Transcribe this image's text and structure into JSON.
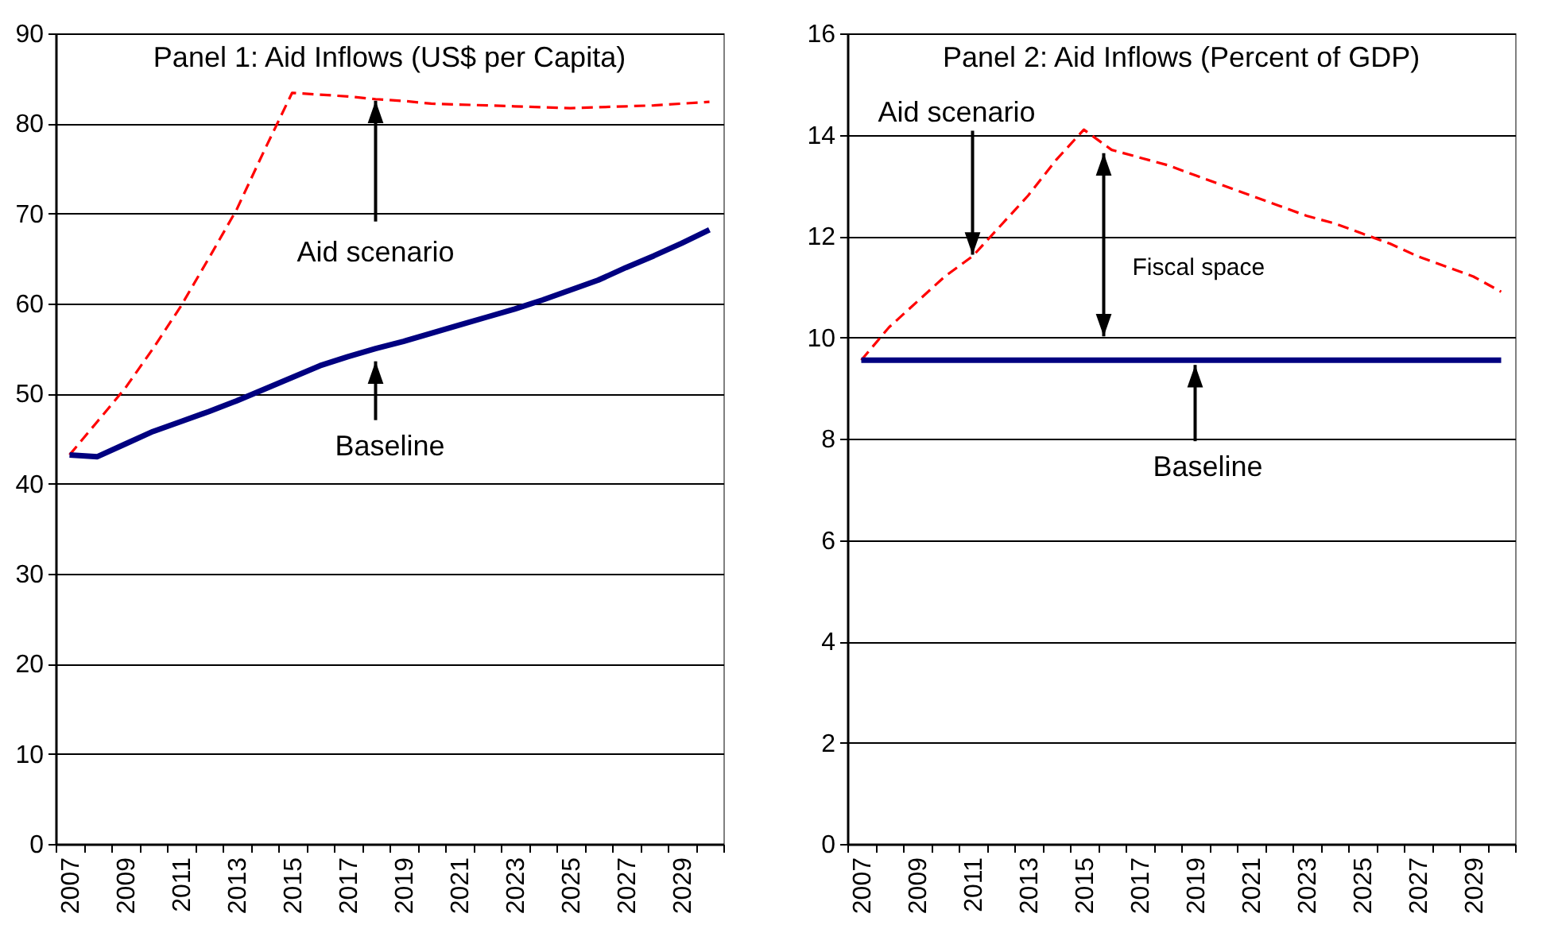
{
  "chart_data": [
    {
      "type": "line",
      "title": "Panel 1: Aid Inflows (US$ per Capita)",
      "categories": [
        "2007",
        null,
        "2009",
        null,
        "2011",
        null,
        "2013",
        null,
        "2015",
        null,
        "2017",
        null,
        "2019",
        null,
        "2021",
        null,
        "2023",
        null,
        "2025",
        null,
        "2027",
        null,
        "2029",
        null
      ],
      "series": [
        {
          "color": "#ff0000",
          "line_style": "dashed",
          "values": [
            43.2,
            46.9,
            50.6,
            55.0,
            59.7,
            65.0,
            70.4,
            77.0,
            83.4,
            83.2,
            83.0,
            82.7,
            82.5,
            82.2,
            82.1,
            82.0,
            81.9,
            81.8,
            81.7,
            81.8,
            81.9,
            82.0,
            82.2,
            82.4
          ]
        },
        {
          "color": "#000080",
          "line_style": "solid",
          "values": [
            43.2,
            43.0,
            44.4,
            45.8,
            46.9,
            48.0,
            49.2,
            50.5,
            51.8,
            53.1,
            54.1,
            55.0,
            55.8,
            56.7,
            57.6,
            58.5,
            59.4,
            60.4,
            61.5,
            62.6,
            64.0,
            65.3,
            66.7,
            68.2
          ]
        }
      ],
      "ylim": [
        0,
        90
      ],
      "yticks": [
        0,
        10,
        20,
        30,
        40,
        50,
        60,
        70,
        80,
        90
      ],
      "grid": "y",
      "annotations": [
        {
          "text": "Aid scenario",
          "y": 82.7
        },
        {
          "text": "Baseline",
          "y": 55.0
        }
      ]
    },
    {
      "type": "line",
      "title": "Panel 2: Aid Inflows (Percent of GDP)",
      "categories": [
        "2007",
        null,
        "2009",
        null,
        "2011",
        null,
        "2013",
        null,
        "2015",
        null,
        "2017",
        null,
        "2019",
        null,
        "2021",
        null,
        "2023",
        null,
        "2025",
        null,
        "2027",
        null,
        "2029",
        null
      ],
      "series": [
        {
          "color": "#ff0000",
          "line_style": "dashed",
          "values": [
            9.55,
            10.2,
            10.7,
            11.2,
            11.6,
            12.2,
            12.8,
            13.5,
            14.1,
            13.7,
            13.55,
            13.4,
            13.2,
            13.0,
            12.8,
            12.6,
            12.4,
            12.25,
            12.05,
            11.85,
            11.6,
            11.4,
            11.2,
            10.9
          ]
        },
        {
          "color": "#000080",
          "line_style": "solid",
          "values": [
            9.55,
            9.55,
            9.55,
            9.55,
            9.55,
            9.55,
            9.55,
            9.55,
            9.55,
            9.55,
            9.55,
            9.55,
            9.55,
            9.55,
            9.55,
            9.55,
            9.55,
            9.55,
            9.55,
            9.55,
            9.55,
            9.55,
            9.55,
            9.55
          ]
        }
      ],
      "ylim": [
        0,
        16
      ],
      "yticks": [
        0,
        2,
        4,
        6,
        8,
        10,
        12,
        14,
        16
      ],
      "grid": "y",
      "annotations": [
        {
          "text": "Aid scenario",
          "x": "2011",
          "y": 11.6
        },
        "Fiscal space",
        {
          "text": "Baseline",
          "x": "2019",
          "y": 9.55
        }
      ]
    }
  ]
}
